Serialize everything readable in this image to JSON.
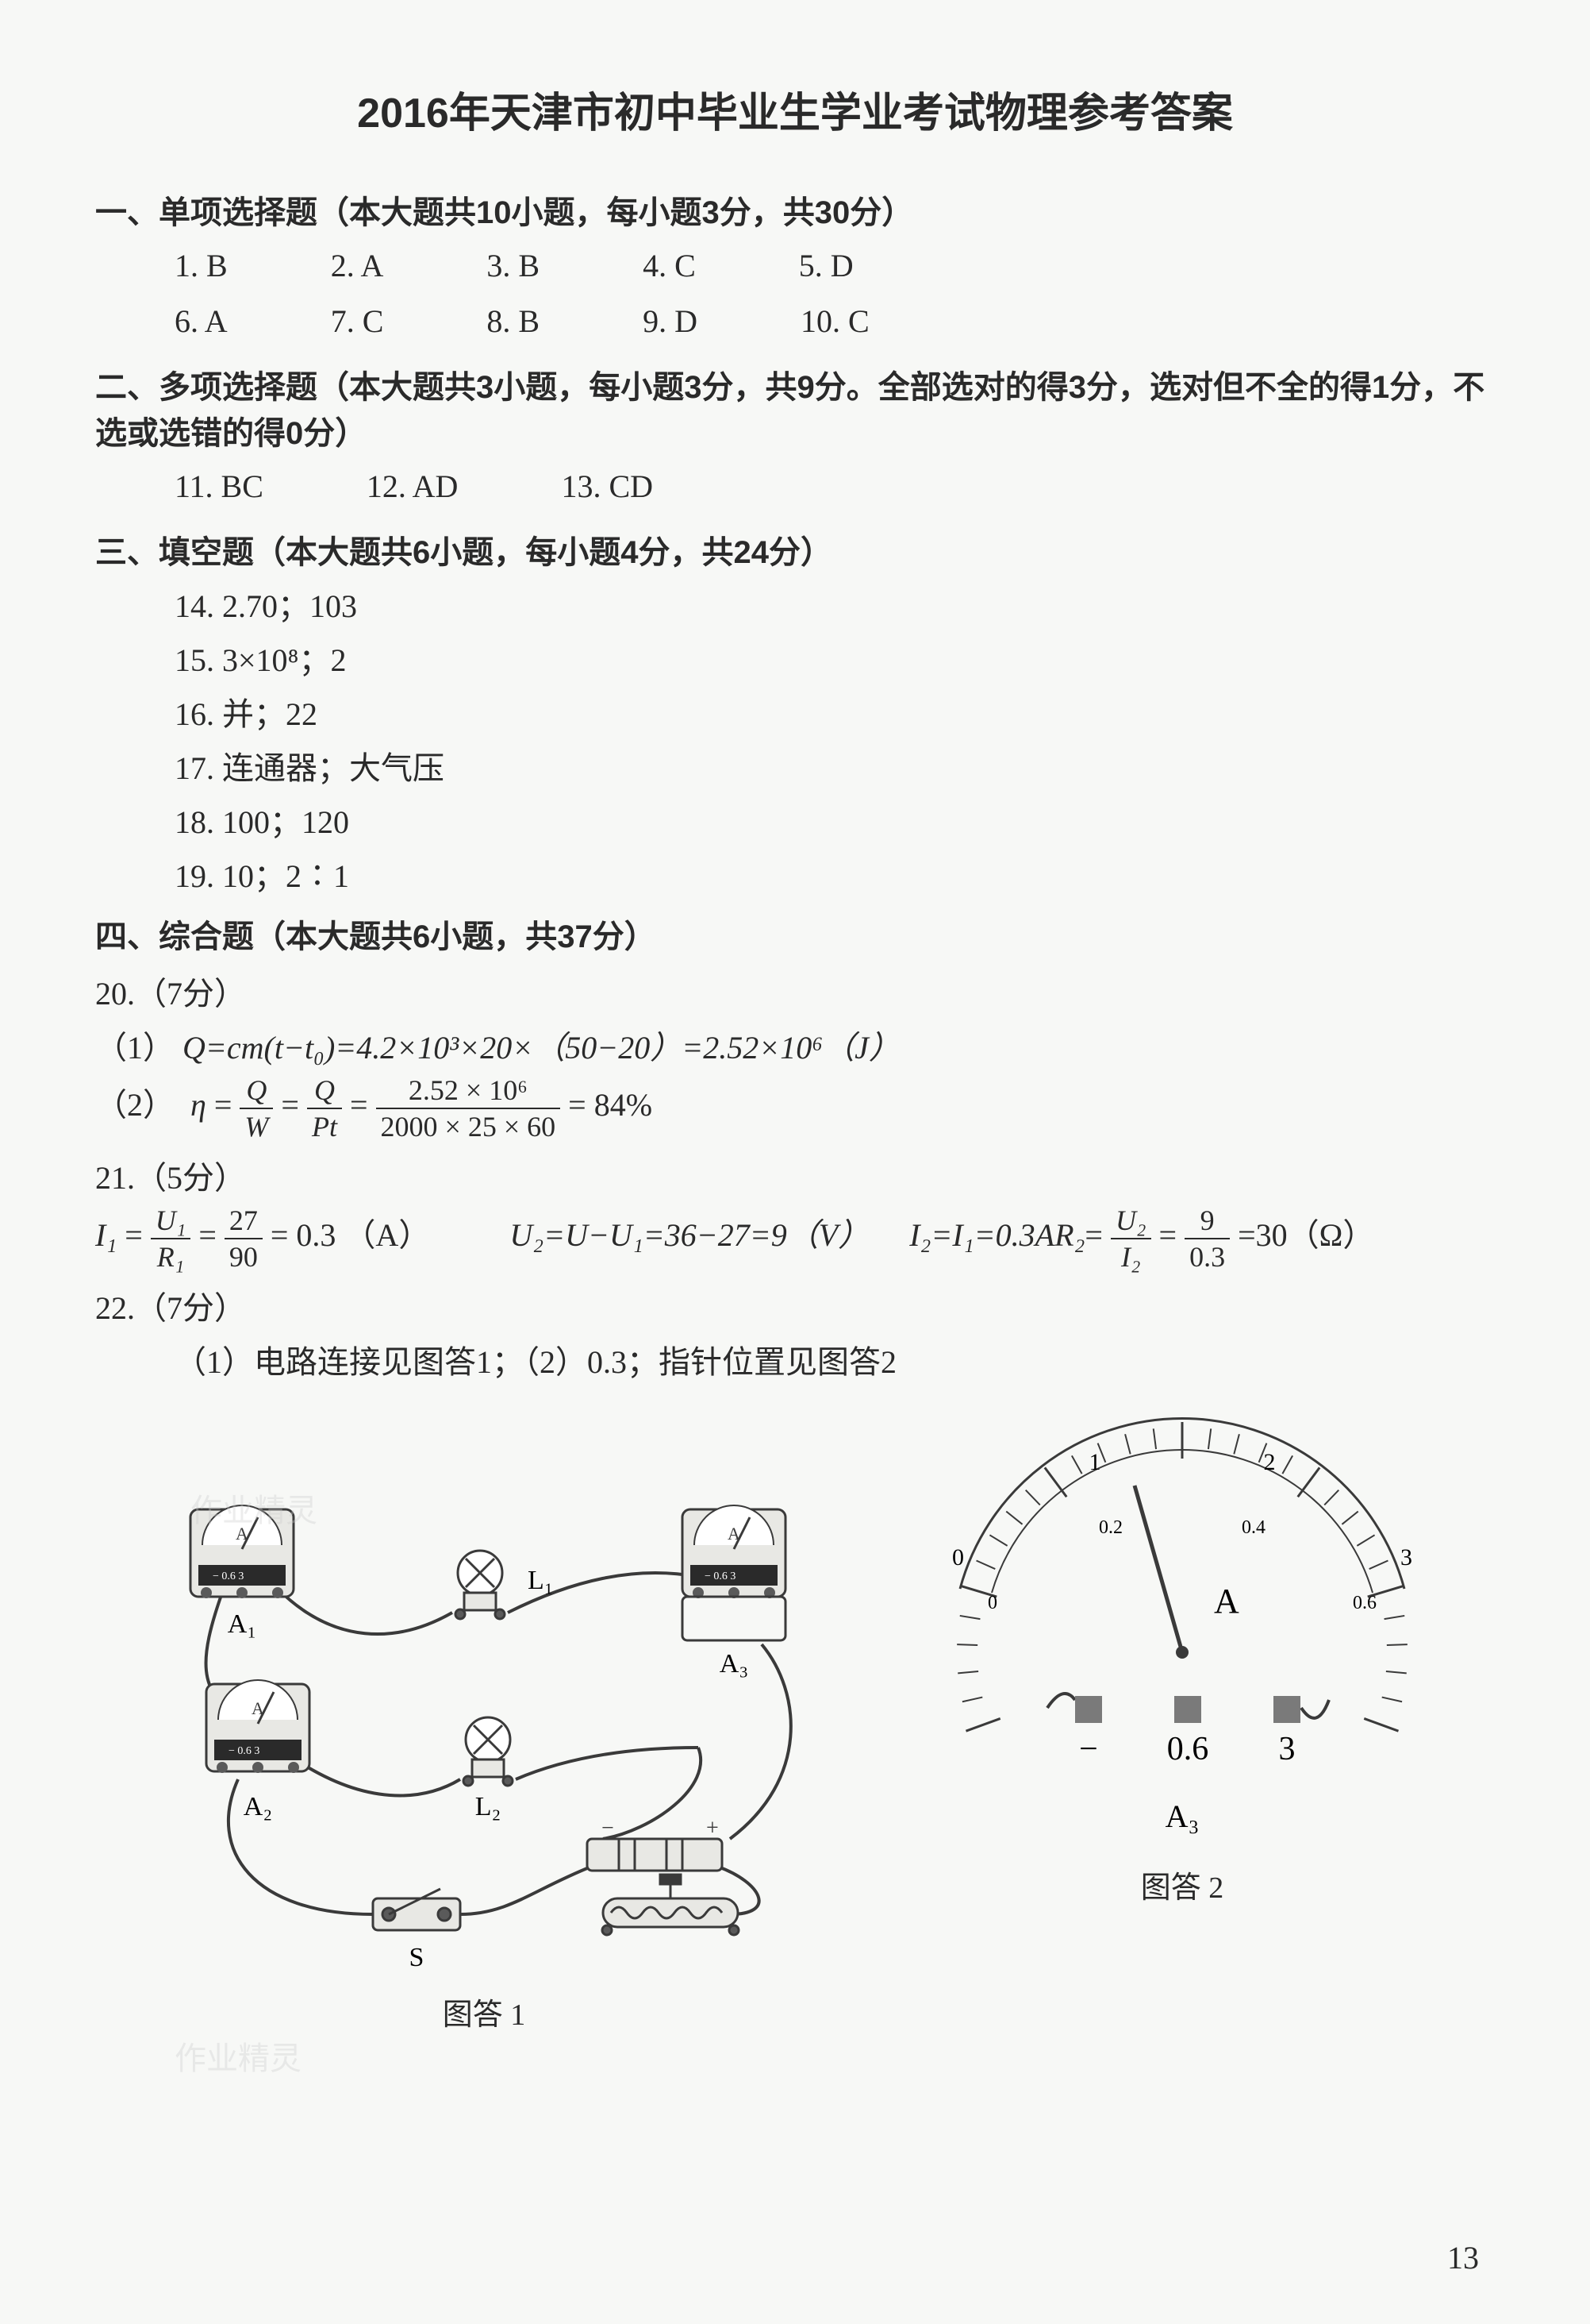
{
  "title": "2016年天津市初中毕业生学业考试物理参考答案",
  "section1": {
    "header": "一、单项选择题（本大题共10小题，每小题3分，共30分）",
    "row1": [
      "1. B",
      "2. A",
      "3. B",
      "4. C",
      "5. D"
    ],
    "row2": [
      "6. A",
      "7. C",
      "8. B",
      "9. D",
      "10. C"
    ]
  },
  "section2": {
    "header": "二、多项选择题（本大题共3小题，每小题3分，共9分。全部选对的得3分，选对但不全的得1分，不选或选错的得0分）",
    "row": [
      "11. BC",
      "12. AD",
      "13. CD"
    ]
  },
  "section3": {
    "header": "三、填空题（本大题共6小题，每小题4分，共24分）",
    "a14": "14. 2.70；103",
    "a15": "15. 3×10⁸；2",
    "a16": "16. 并；22",
    "a17": "17. 连通器；大气压",
    "a18": "18. 100；120",
    "a19": "19. 10；2∶1"
  },
  "section4": {
    "header": "四、综合题（本大题共6小题，共37分）",
    "q20": "20.（7分）",
    "q20_1_prefix": "（1）",
    "q20_1_body": "Q=cm(t−t₀)=4.2×10³×20×（50−20）=2.52×10⁶（J）",
    "q20_2_prefix": "（2）",
    "q20_2_eta": "η",
    "q20_2_eq": " = ",
    "q20_2_frac1_num": "Q",
    "q20_2_frac1_den": "W",
    "q20_2_frac2_num": "Q",
    "q20_2_frac2_den": "Pt",
    "q20_2_frac3_num": "2.52 × 10⁶",
    "q20_2_frac3_den": "2000 × 25 × 60",
    "q20_2_result": " = 84%",
    "q21": "21.（5分）",
    "q21_I1": "I₁",
    "q21_frac1_num": "U₁",
    "q21_frac1_den": "R₁",
    "q21_frac2_num": "27",
    "q21_frac2_den": "90",
    "q21_I1_res": " = 0.3 （A）",
    "q21_U2": "U₂=U−U₁=36−27=9（V）",
    "q21_I2pre": "I₂=I₁=0.3A",
    "q21_R2": "R₂",
    "q21_frac3_num": "U₂",
    "q21_frac3_den": "I₂",
    "q21_frac4_num": "9",
    "q21_frac4_den": "0.3",
    "q21_R2_res": " =30（Ω）",
    "q22": "22.（7分）",
    "q22_1": "（1）电路连接见图答1；（2）0.3；指针位置见图答2"
  },
  "figures": {
    "fig1_caption": "图答 1",
    "fig2_caption": "图答 2",
    "fig1_labels": {
      "A1": "A₁",
      "A2": "A₂",
      "A3": "A₃",
      "L1": "L₁",
      "L2": "L₂",
      "S": "S"
    },
    "fig2_labels": {
      "top_0": "0",
      "top_1": "1",
      "top_2": "2",
      "top_3": "3",
      "bot_0": "0",
      "bot_02": "0.2",
      "bot_04": "0.4",
      "bot_06": "0.6",
      "unit": "A",
      "minus": "−",
      "sel06": "0.6",
      "sel3": "3",
      "meter": "A₃"
    }
  },
  "watermarks": {
    "wm1": "作业精灵",
    "wm2": "作业精灵"
  },
  "pageNumber": "13",
  "colors": {
    "text": "#2a2a2a",
    "bg": "#f7f8f6",
    "line": "#3a3a3a",
    "meterbg": "#e8e8e4",
    "terminal": "#5a5a5a"
  },
  "stroke_widths": {
    "wire": 4,
    "device": 3,
    "tick": 2
  }
}
